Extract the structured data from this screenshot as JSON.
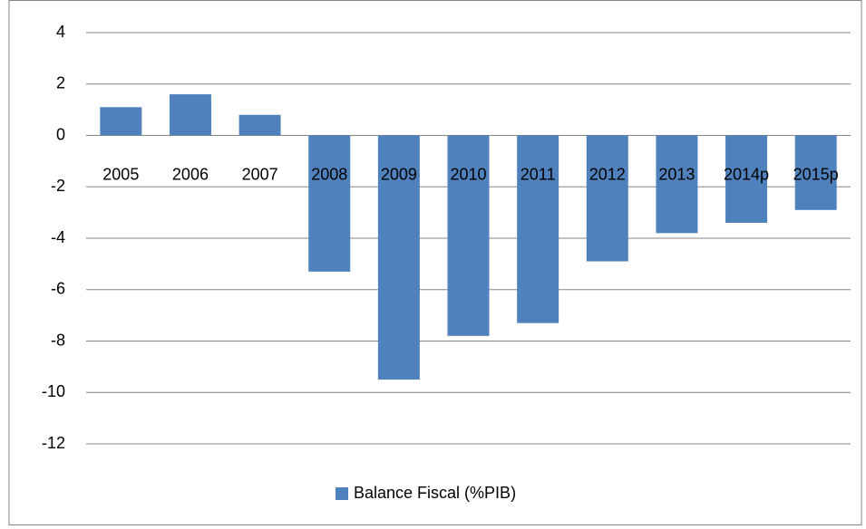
{
  "chart_data": {
    "type": "bar",
    "categories": [
      "2005",
      "2006",
      "2007",
      "2008",
      "2009",
      "2010",
      "2011",
      "2012",
      "2013",
      "2014p",
      "2015p"
    ],
    "series": [
      {
        "name": "Balance Fiscal (%PIB)",
        "color": "#4f81bd",
        "values": [
          1.1,
          1.6,
          0.8,
          -5.3,
          -9.5,
          -7.8,
          -7.3,
          -4.9,
          -3.8,
          -3.4,
          -2.9
        ]
      }
    ],
    "ylim": [
      -12,
      4
    ],
    "yticks": [
      -12,
      -10,
      -8,
      -6,
      -4,
      -2,
      0,
      2,
      4
    ],
    "grid": true,
    "legend": "bottom"
  }
}
